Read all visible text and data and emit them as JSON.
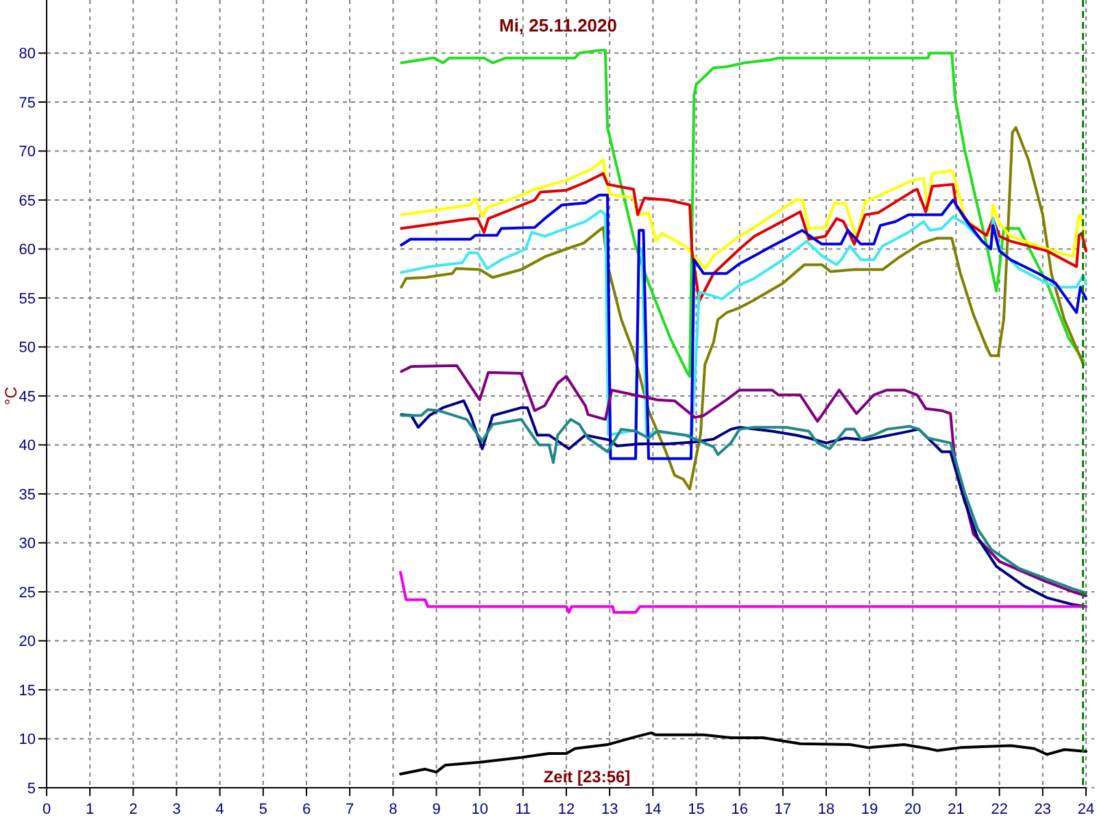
{
  "chart_data": {
    "type": "line",
    "title": "Mi, 25.11.2020",
    "xlabel": "Zeit [23:56]",
    "ylabel": "°C",
    "xlim": [
      0,
      24
    ],
    "xticks": [
      0,
      1,
      2,
      3,
      4,
      5,
      6,
      7,
      8,
      9,
      10,
      11,
      12,
      13,
      14,
      15,
      16,
      17,
      18,
      19,
      20,
      21,
      22,
      23,
      24
    ],
    "ylim": [
      5,
      85
    ],
    "yticks": [
      5,
      10,
      15,
      20,
      25,
      30,
      35,
      40,
      45,
      50,
      55,
      60,
      65,
      70,
      75,
      80
    ],
    "grid": true,
    "ref_lines": [
      {
        "axis": "x",
        "value": 23.93,
        "color": "#008000",
        "line_style": "dashed"
      }
    ],
    "series": [
      {
        "color": "#22dd22",
        "x": [
          8.19,
          8.9,
          8.95,
          9.15,
          9.3,
          10.1,
          10.3,
          10.6,
          12.2,
          12.3,
          12.8,
          12.9,
          12.95,
          13.6,
          13.9,
          14.4,
          14.8,
          14.85,
          14.95,
          15.0,
          15.4,
          15.7,
          16.0,
          16.1,
          16.7,
          16.9,
          20.35,
          20.4,
          20.9,
          20.98,
          21.2,
          21.46,
          21.66,
          21.93,
          22.0,
          22.1,
          22.45,
          23.1,
          23.6,
          23.94
        ],
        "values": [
          79,
          79.5,
          79.5,
          79,
          79.5,
          79.5,
          79,
          79.5,
          79.5,
          80,
          80.3,
          80.3,
          72.4,
          60.3,
          56.5,
          50.9,
          47.3,
          47,
          75.7,
          76.8,
          78.5,
          78.6,
          78.9,
          79,
          79.3,
          79.5,
          79.5,
          80,
          80,
          75.3,
          70.1,
          65,
          61.3,
          55.7,
          58,
          62.1,
          62.1,
          56.5,
          50.9,
          48.6
        ]
      },
      {
        "color": "#808000",
        "x": [
          8.19,
          8.3,
          8.74,
          9.37,
          9.45,
          10.0,
          10.3,
          10.96,
          11.5,
          12.0,
          12.4,
          12.76,
          12.85,
          12.95,
          13.27,
          13.55,
          13.9,
          14.3,
          14.5,
          14.7,
          14.85,
          15.1,
          15.2,
          15.4,
          15.5,
          15.7,
          16.0,
          16.3,
          17.0,
          17.5,
          17.9,
          18.1,
          18.65,
          19.3,
          19.7,
          20.2,
          20.56,
          20.9,
          21.1,
          21.4,
          21.7,
          21.8,
          21.97,
          22.1,
          22.2,
          22.3,
          22.38,
          22.67,
          23.0,
          23.2,
          23.5,
          23.94
        ],
        "values": [
          56.1,
          57,
          57.1,
          57.5,
          58,
          57.9,
          57.1,
          57.9,
          59.2,
          60,
          60.6,
          61.9,
          62.2,
          58.4,
          52.8,
          49.5,
          43.5,
          39.3,
          36.9,
          36.5,
          35.5,
          41.1,
          48.2,
          50.5,
          52.8,
          53.5,
          54,
          54.7,
          56.5,
          58.4,
          58.4,
          57.7,
          57.9,
          57.9,
          59.2,
          60.6,
          61.1,
          61.1,
          57.5,
          53.3,
          50,
          49.1,
          49.1,
          52.8,
          62.1,
          71.9,
          72.4,
          69.1,
          63.5,
          57.5,
          52.8,
          48.2
        ]
      },
      {
        "color": "#ffff00",
        "x": [
          8.19,
          8.84,
          9.79,
          9.9,
          10.06,
          10.17,
          10.96,
          11.27,
          12.0,
          12.6,
          12.85,
          12.9,
          13.0,
          13.55,
          13.65,
          13.9,
          14.07,
          14.2,
          14.75,
          14.85,
          15.2,
          15.4,
          16.0,
          16.3,
          17.3,
          17.45,
          17.6,
          17.98,
          18.2,
          18.45,
          18.7,
          18.9,
          20.0,
          20.25,
          20.35,
          20.45,
          20.9,
          21.0,
          21.2,
          21.6,
          21.8,
          21.85,
          22.0,
          22.26,
          23.1,
          23.7,
          23.84,
          23.9,
          23.95
        ],
        "values": [
          63.5,
          63.9,
          64.5,
          65.2,
          63.3,
          64.2,
          65.5,
          66.1,
          67,
          68.2,
          69.1,
          67.7,
          65.6,
          65.2,
          63.5,
          63.7,
          60.8,
          61.6,
          60.3,
          59.8,
          58,
          59.3,
          61.3,
          62.1,
          65,
          65,
          62.1,
          62.2,
          64.7,
          64.6,
          61,
          64.8,
          67,
          67.2,
          64,
          67.7,
          68,
          66.8,
          63.1,
          61.7,
          61.3,
          64.5,
          62.6,
          61.3,
          60,
          59.2,
          63.5,
          63.2,
          61.3
        ]
      },
      {
        "color": "#e00000",
        "x": [
          8.19,
          9.79,
          9.95,
          10.1,
          10.2,
          11.27,
          11.4,
          12.0,
          12.44,
          12.85,
          12.95,
          13.55,
          13.65,
          13.8,
          14.35,
          14.85,
          14.9,
          15.07,
          15.4,
          16.0,
          16.34,
          17.4,
          17.6,
          17.98,
          18.24,
          18.4,
          18.65,
          18.9,
          19.2,
          20.0,
          20.1,
          20.3,
          20.45,
          20.93,
          21.0,
          21.3,
          21.7,
          21.85,
          22.0,
          22.26,
          23.1,
          23.78,
          23.84,
          23.9,
          24.0
        ],
        "values": [
          62.1,
          63.1,
          63.1,
          61.7,
          63.1,
          65,
          65.8,
          66,
          66.8,
          67.7,
          66.6,
          66.1,
          63.5,
          65.2,
          65,
          64.5,
          59.8,
          54.7,
          57.5,
          60,
          61.3,
          63.8,
          61,
          61.3,
          63.1,
          62.8,
          60.5,
          63.5,
          63.7,
          65.9,
          66.1,
          63.8,
          66.4,
          66.6,
          64.5,
          62.6,
          61.4,
          63.1,
          61.3,
          60.8,
          59.8,
          58.2,
          61.4,
          61.6,
          59.8
        ]
      },
      {
        "color": "#40e8f0",
        "x": [
          8.19,
          8.84,
          9.6,
          9.74,
          9.95,
          10.17,
          10.5,
          11.06,
          11.2,
          11.5,
          12.0,
          12.44,
          12.8,
          12.9,
          12.97,
          13.6,
          13.68,
          13.75,
          13.85,
          14.1,
          14.75,
          14.9,
          15.07,
          15.17,
          15.6,
          16.0,
          16.34,
          17.0,
          17.55,
          17.9,
          18.24,
          18.35,
          18.55,
          18.8,
          19.1,
          19.3,
          19.9,
          20.25,
          20.4,
          20.67,
          20.93,
          21.2,
          21.6,
          21.8,
          21.85,
          22.0,
          22.45,
          23.1,
          23.4,
          23.78,
          23.94,
          24.0
        ],
        "values": [
          57.6,
          58.2,
          58.6,
          59.6,
          59.6,
          58,
          58.9,
          60,
          61.7,
          61.3,
          62.1,
          62.8,
          63.9,
          63.5,
          41,
          41.5,
          60,
          60,
          41,
          41.4,
          41,
          41,
          55.6,
          55.5,
          54.9,
          56.3,
          57,
          58.9,
          60.8,
          59.3,
          58.4,
          58.9,
          60.3,
          58.9,
          58.9,
          60.3,
          61.7,
          62.8,
          61.9,
          62.1,
          63.3,
          62.6,
          60.8,
          60,
          63.1,
          60,
          58,
          56.5,
          56.1,
          56.1,
          57.3,
          56.4
        ]
      },
      {
        "color": "#0000e0",
        "x": [
          8.19,
          8.4,
          9.79,
          9.9,
          10.4,
          10.5,
          11.27,
          11.5,
          11.9,
          12.44,
          12.76,
          12.95,
          13.02,
          13.6,
          13.68,
          13.78,
          13.9,
          14.88,
          14.95,
          15.17,
          15.7,
          16.0,
          16.34,
          16.75,
          17.45,
          17.6,
          17.9,
          18.34,
          18.5,
          18.8,
          19.1,
          19.25,
          19.6,
          19.9,
          20.67,
          20.93,
          21.2,
          21.6,
          21.8,
          21.85,
          22.0,
          22.26,
          22.9,
          23.3,
          23.78,
          23.87,
          24.0
        ],
        "values": [
          60.4,
          61,
          61,
          61.4,
          61.4,
          62.1,
          62.2,
          63.1,
          64.5,
          64.7,
          65.5,
          65.5,
          38.6,
          38.6,
          61.9,
          61.9,
          38.6,
          38.6,
          58.9,
          57.5,
          57.5,
          58.5,
          59.3,
          60.3,
          61.9,
          61.4,
          60.5,
          60.5,
          61.9,
          60.5,
          60.5,
          62.4,
          62.8,
          63.5,
          63.5,
          65,
          63.1,
          60.8,
          60,
          62.4,
          59.8,
          58.9,
          57.5,
          56.5,
          53.5,
          56.1,
          54.9
        ]
      },
      {
        "color": "#800080",
        "x": [
          8.19,
          8.42,
          9.47,
          9.7,
          10.0,
          10.2,
          10.96,
          11.27,
          11.5,
          11.8,
          12.0,
          12.44,
          12.5,
          12.9,
          13.05,
          14.1,
          14.5,
          14.97,
          15.17,
          15.7,
          16.0,
          16.75,
          16.9,
          17.4,
          17.8,
          18.3,
          18.7,
          19.1,
          19.4,
          19.8,
          20.1,
          20.3,
          20.67,
          20.87,
          20.96,
          21.4,
          21.7,
          22.0,
          22.57,
          23.1,
          23.7,
          24.0
        ],
        "values": [
          47.5,
          48,
          48.1,
          46.6,
          44.6,
          47.4,
          47.3,
          43.5,
          44,
          46.3,
          47,
          44,
          43.1,
          42.6,
          45.6,
          44.6,
          44.5,
          42.8,
          43,
          44.6,
          45.6,
          45.6,
          45.1,
          45.1,
          42.4,
          45.6,
          43.2,
          45.1,
          45.6,
          45.6,
          45.1,
          43.7,
          43.5,
          43.2,
          38.9,
          30.9,
          29.5,
          28.1,
          27,
          26,
          25,
          24.6
        ]
      },
      {
        "color": "#000080",
        "x": [
          8.19,
          8.42,
          8.58,
          8.84,
          9.15,
          9.63,
          9.79,
          10.06,
          10.3,
          10.96,
          11.1,
          11.33,
          11.6,
          12.06,
          12.44,
          13.0,
          13.17,
          13.7,
          14.35,
          14.97,
          15.4,
          15.8,
          16.0,
          16.75,
          17.3,
          17.6,
          18.0,
          18.45,
          18.9,
          19.7,
          20.14,
          20.67,
          20.87,
          21.2,
          21.5,
          21.93,
          22.57,
          23.1,
          23.7,
          24.0
        ],
        "values": [
          43.1,
          43,
          41.8,
          43,
          43.8,
          44.5,
          43,
          39.6,
          43,
          43.8,
          43.8,
          41,
          41,
          39.6,
          41,
          40.5,
          39.9,
          40.1,
          40.1,
          40.3,
          40.6,
          41.6,
          41.8,
          41.4,
          41,
          40.7,
          40.2,
          40.7,
          40.5,
          41.2,
          41.6,
          39.3,
          39.3,
          34.2,
          30.5,
          27.6,
          25.6,
          24.4,
          23.7,
          23.5
        ]
      },
      {
        "color": "#208888",
        "x": [
          8.19,
          8.65,
          8.8,
          9.05,
          9.7,
          10.06,
          10.3,
          10.96,
          11.37,
          11.6,
          11.7,
          11.8,
          12.1,
          12.3,
          12.5,
          12.95,
          13.27,
          13.6,
          13.9,
          14.1,
          14.75,
          14.97,
          15.4,
          15.5,
          15.8,
          16.0,
          16.34,
          17.07,
          17.6,
          17.8,
          18.08,
          18.45,
          18.65,
          18.8,
          19.1,
          19.4,
          19.93,
          20.14,
          20.35,
          20.87,
          21.2,
          21.5,
          21.82,
          22.45,
          23.1,
          23.7,
          24.0
        ],
        "values": [
          43,
          43,
          43.6,
          43.5,
          42.6,
          40.4,
          42.1,
          42.6,
          40,
          40,
          38.2,
          41,
          42.6,
          42.1,
          40.7,
          39.3,
          41.6,
          41.4,
          40.7,
          41.4,
          41,
          40.6,
          39.8,
          39,
          40.2,
          41.6,
          41.8,
          41.8,
          41.4,
          40.2,
          39.6,
          41.6,
          41.6,
          40.6,
          41,
          41.6,
          41.9,
          41.6,
          40.7,
          40.2,
          35.1,
          31.4,
          29.3,
          27.4,
          26.3,
          25.3,
          24.9
        ]
      },
      {
        "color": "#ee00ee",
        "x": [
          8.17,
          8.3,
          8.74,
          8.8,
          12.0,
          12.06,
          12.12,
          13.07,
          13.1,
          13.6,
          13.7,
          24.0
        ],
        "values": [
          27,
          24.2,
          24.2,
          23.5,
          23.5,
          22.9,
          23.5,
          23.5,
          22.9,
          22.9,
          23.5,
          23.5
        ]
      },
      {
        "color": "#000000",
        "x": [
          8.17,
          8.74,
          9.0,
          9.2,
          10.0,
          10.96,
          11.6,
          12.0,
          12.2,
          12.95,
          13.6,
          13.96,
          14.07,
          15.17,
          15.8,
          16.55,
          17.4,
          18.55,
          18.97,
          19.8,
          20.35,
          20.56,
          21.1,
          22.26,
          22.8,
          23.1,
          23.5,
          24.0
        ],
        "values": [
          6.4,
          6.9,
          6.6,
          7.3,
          7.6,
          8.1,
          8.5,
          8.5,
          9,
          9.4,
          10.2,
          10.6,
          10.4,
          10.4,
          10.1,
          10.1,
          9.5,
          9.4,
          9.1,
          9.4,
          9,
          8.8,
          9.1,
          9.3,
          9,
          8.4,
          8.9,
          8.7
        ]
      }
    ]
  }
}
